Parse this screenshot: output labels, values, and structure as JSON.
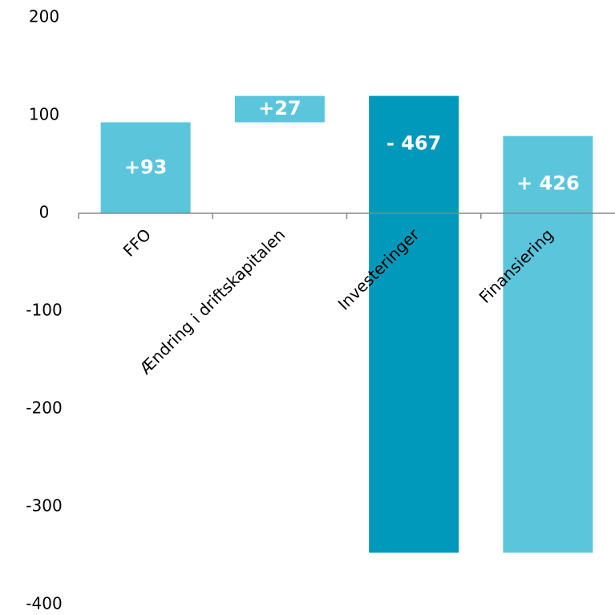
{
  "chart_data": {
    "type": "waterfall",
    "categories": [
      "FFO",
      "Ændring i driftskapitalen",
      "Investeringer",
      "Finansiering"
    ],
    "values": [
      93,
      27,
      -467,
      426
    ],
    "value_labels": [
      "+93",
      "+27",
      "- 467",
      "+ 426"
    ],
    "colors": [
      "#5bc5dc",
      "#5bc5dc",
      "#0099bb",
      "#5bc5dc"
    ],
    "ylim": [
      -400,
      200
    ],
    "yticks": [
      -400,
      -300,
      -200,
      -100,
      0,
      100,
      200
    ],
    "grid": false
  }
}
